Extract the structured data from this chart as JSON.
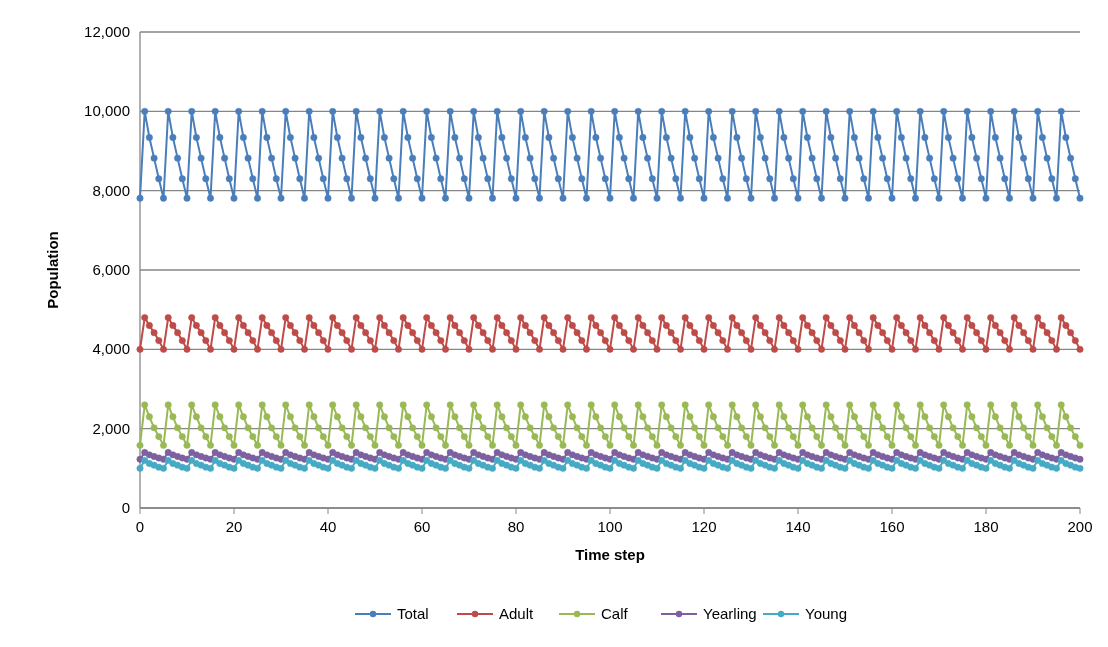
{
  "chart_data": {
    "type": "line",
    "xlabel": "Time step",
    "ylabel": "Population",
    "xlim": [
      0,
      200
    ],
    "xticks": [
      0,
      20,
      40,
      60,
      80,
      100,
      120,
      140,
      160,
      180,
      200
    ],
    "ylim": [
      0,
      12000
    ],
    "yticks": [
      {
        "value": 0,
        "label": "0"
      },
      {
        "value": 2000,
        "label": "2,000"
      },
      {
        "value": 4000,
        "label": "4,000"
      },
      {
        "value": 6000,
        "label": "6,000"
      },
      {
        "value": 8000,
        "label": "8,000"
      },
      {
        "value": 10000,
        "label": "10,000"
      },
      {
        "value": 12000,
        "label": "12,000"
      }
    ],
    "grid": "y",
    "legend": "bottom",
    "marker": "circle",
    "line_style": "solid",
    "x": [
      0,
      1,
      2,
      3,
      4,
      5,
      6,
      7,
      8,
      9,
      10,
      11,
      12,
      13,
      14,
      15,
      16,
      17,
      18,
      19,
      20,
      21,
      22,
      23,
      24,
      25,
      26,
      27,
      28,
      29,
      30,
      31,
      32,
      33,
      34,
      35,
      36,
      37,
      38,
      39,
      40,
      41,
      42,
      43,
      44,
      45,
      46,
      47,
      48,
      49,
      50,
      51,
      52,
      53,
      54,
      55,
      56,
      57,
      58,
      59,
      60,
      61,
      62,
      63,
      64,
      65,
      66,
      67,
      68,
      69,
      70,
      71,
      72,
      73,
      74,
      75,
      76,
      77,
      78,
      79,
      80,
      81,
      82,
      83,
      84,
      85,
      86,
      87,
      88,
      89,
      90,
      91,
      92,
      93,
      94,
      95,
      96,
      97,
      98,
      99,
      100,
      101,
      102,
      103,
      104,
      105,
      106,
      107,
      108,
      109,
      110,
      111,
      112,
      113,
      114,
      115,
      116,
      117,
      118,
      119,
      120,
      121,
      122,
      123,
      124,
      125,
      126,
      127,
      128,
      129,
      130,
      131,
      132,
      133,
      134,
      135,
      136,
      137,
      138,
      139,
      140,
      141,
      142,
      143,
      144,
      145,
      146,
      147,
      148,
      149,
      150,
      151,
      152,
      153,
      154,
      155,
      156,
      157,
      158,
      159,
      160,
      161,
      162,
      163,
      164,
      165,
      166,
      167,
      168,
      169,
      170,
      171,
      172,
      173,
      174,
      175,
      176,
      177,
      178,
      179,
      180,
      181,
      182,
      183,
      184,
      185,
      186,
      187,
      188,
      189,
      190,
      191,
      192,
      193,
      194,
      195,
      196,
      197,
      198,
      199,
      200
    ],
    "series": [
      {
        "name": "Total",
        "color": "#4a7ebb",
        "values": [
          7810,
          10000,
          9340,
          8820,
          8300,
          7810,
          10000,
          9340,
          8820,
          8300,
          7810,
          10000,
          9340,
          8820,
          8300,
          7810,
          10000,
          9340,
          8820,
          8300,
          7810,
          10000,
          9340,
          8820,
          8300,
          7810,
          10000,
          9340,
          8820,
          8300,
          7810,
          10000,
          9340,
          8820,
          8300,
          7810,
          10000,
          9340,
          8820,
          8300,
          7810,
          10000,
          9340,
          8820,
          8300,
          7810,
          10000,
          9340,
          8820,
          8300,
          7810,
          10000,
          9340,
          8820,
          8300,
          7810,
          10000,
          9340,
          8820,
          8300,
          7810,
          10000,
          9340,
          8820,
          8300,
          7810,
          10000,
          9340,
          8820,
          8300,
          7810,
          10000,
          9340,
          8820,
          8300,
          7810,
          10000,
          9340,
          8820,
          8300,
          7810,
          10000,
          9340,
          8820,
          8300,
          7810,
          10000,
          9340,
          8820,
          8300,
          7810,
          10000,
          9340,
          8820,
          8300,
          7810,
          10000,
          9340,
          8820,
          8300,
          7810,
          10000,
          9340,
          8820,
          8300,
          7810,
          10000,
          9340,
          8820,
          8300,
          7810,
          10000,
          9340,
          8820,
          8300,
          7810,
          10000,
          9340,
          8820,
          8300,
          7810,
          10000,
          9340,
          8820,
          8300,
          7810,
          10000,
          9340,
          8820,
          8300,
          7810,
          10000,
          9340,
          8820,
          8300,
          7810,
          10000,
          9340,
          8820,
          8300,
          7810,
          10000,
          9340,
          8820,
          8300,
          7810,
          10000,
          9340,
          8820,
          8300,
          7810,
          10000,
          9340,
          8820,
          8300,
          7810,
          10000,
          9340,
          8820,
          8300,
          7810,
          10000,
          9340,
          8820,
          8300,
          7810,
          10000,
          9340,
          8820,
          8300,
          7810,
          10000,
          9340,
          8820,
          8300,
          7810,
          10000,
          9340,
          8820,
          8300,
          7810,
          10000,
          9340,
          8820,
          8300,
          7810,
          10000,
          9340,
          8820,
          8300,
          7810,
          10000,
          9340,
          8820,
          8300,
          7810,
          10000,
          9340,
          8820,
          8300,
          7810
        ]
      },
      {
        "name": "Adult",
        "color": "#be4b48",
        "values": [
          4000,
          4800,
          4600,
          4420,
          4220,
          4000,
          4800,
          4600,
          4420,
          4220,
          4000,
          4800,
          4600,
          4420,
          4220,
          4000,
          4800,
          4600,
          4420,
          4220,
          4000,
          4800,
          4600,
          4420,
          4220,
          4000,
          4800,
          4600,
          4420,
          4220,
          4000,
          4800,
          4600,
          4420,
          4220,
          4000,
          4800,
          4600,
          4420,
          4220,
          4000,
          4800,
          4600,
          4420,
          4220,
          4000,
          4800,
          4600,
          4420,
          4220,
          4000,
          4800,
          4600,
          4420,
          4220,
          4000,
          4800,
          4600,
          4420,
          4220,
          4000,
          4800,
          4600,
          4420,
          4220,
          4000,
          4800,
          4600,
          4420,
          4220,
          4000,
          4800,
          4600,
          4420,
          4220,
          4000,
          4800,
          4600,
          4420,
          4220,
          4000,
          4800,
          4600,
          4420,
          4220,
          4000,
          4800,
          4600,
          4420,
          4220,
          4000,
          4800,
          4600,
          4420,
          4220,
          4000,
          4800,
          4600,
          4420,
          4220,
          4000,
          4800,
          4600,
          4420,
          4220,
          4000,
          4800,
          4600,
          4420,
          4220,
          4000,
          4800,
          4600,
          4420,
          4220,
          4000,
          4800,
          4600,
          4420,
          4220,
          4000,
          4800,
          4600,
          4420,
          4220,
          4000,
          4800,
          4600,
          4420,
          4220,
          4000,
          4800,
          4600,
          4420,
          4220,
          4000,
          4800,
          4600,
          4420,
          4220,
          4000,
          4800,
          4600,
          4420,
          4220,
          4000,
          4800,
          4600,
          4420,
          4220,
          4000,
          4800,
          4600,
          4420,
          4220,
          4000,
          4800,
          4600,
          4420,
          4220,
          4000,
          4800,
          4600,
          4420,
          4220,
          4000,
          4800,
          4600,
          4420,
          4220,
          4000,
          4800,
          4600,
          4420,
          4220,
          4000,
          4800,
          4600,
          4420,
          4220,
          4000,
          4800,
          4600,
          4420,
          4220,
          4000,
          4800,
          4600,
          4420,
          4220,
          4000,
          4800,
          4600,
          4420,
          4220,
          4000,
          4800,
          4600,
          4420,
          4220,
          4000
        ]
      },
      {
        "name": "Calf",
        "color": "#98b954",
        "values": [
          1580,
          2600,
          2300,
          2020,
          1800,
          1580,
          2600,
          2300,
          2020,
          1800,
          1580,
          2600,
          2300,
          2020,
          1800,
          1580,
          2600,
          2300,
          2020,
          1800,
          1580,
          2600,
          2300,
          2020,
          1800,
          1580,
          2600,
          2300,
          2020,
          1800,
          1580,
          2600,
          2300,
          2020,
          1800,
          1580,
          2600,
          2300,
          2020,
          1800,
          1580,
          2600,
          2300,
          2020,
          1800,
          1580,
          2600,
          2300,
          2020,
          1800,
          1580,
          2600,
          2300,
          2020,
          1800,
          1580,
          2600,
          2300,
          2020,
          1800,
          1580,
          2600,
          2300,
          2020,
          1800,
          1580,
          2600,
          2300,
          2020,
          1800,
          1580,
          2600,
          2300,
          2020,
          1800,
          1580,
          2600,
          2300,
          2020,
          1800,
          1580,
          2600,
          2300,
          2020,
          1800,
          1580,
          2600,
          2300,
          2020,
          1800,
          1580,
          2600,
          2300,
          2020,
          1800,
          1580,
          2600,
          2300,
          2020,
          1800,
          1580,
          2600,
          2300,
          2020,
          1800,
          1580,
          2600,
          2300,
          2020,
          1800,
          1580,
          2600,
          2300,
          2020,
          1800,
          1580,
          2600,
          2300,
          2020,
          1800,
          1580,
          2600,
          2300,
          2020,
          1800,
          1580,
          2600,
          2300,
          2020,
          1800,
          1580,
          2600,
          2300,
          2020,
          1800,
          1580,
          2600,
          2300,
          2020,
          1800,
          1580,
          2600,
          2300,
          2020,
          1800,
          1580,
          2600,
          2300,
          2020,
          1800,
          1580,
          2600,
          2300,
          2020,
          1800,
          1580,
          2600,
          2300,
          2020,
          1800,
          1580,
          2600,
          2300,
          2020,
          1800,
          1580,
          2600,
          2300,
          2020,
          1800,
          1580,
          2600,
          2300,
          2020,
          1800,
          1580,
          2600,
          2300,
          2020,
          1800,
          1580,
          2600,
          2300,
          2020,
          1800,
          1580,
          2600,
          2300,
          2020,
          1800,
          1580,
          2600,
          2300,
          2020,
          1800,
          1580,
          2600,
          2300,
          2020,
          1800,
          1580
        ]
      },
      {
        "name": "Yearling",
        "color": "#7d60a0",
        "values": [
          1230,
          1400,
          1340,
          1300,
          1260,
          1230,
          1400,
          1340,
          1300,
          1260,
          1230,
          1400,
          1340,
          1300,
          1260,
          1230,
          1400,
          1340,
          1300,
          1260,
          1230,
          1400,
          1340,
          1300,
          1260,
          1230,
          1400,
          1340,
          1300,
          1260,
          1230,
          1400,
          1340,
          1300,
          1260,
          1230,
          1400,
          1340,
          1300,
          1260,
          1230,
          1400,
          1340,
          1300,
          1260,
          1230,
          1400,
          1340,
          1300,
          1260,
          1230,
          1400,
          1340,
          1300,
          1260,
          1230,
          1400,
          1340,
          1300,
          1260,
          1230,
          1400,
          1340,
          1300,
          1260,
          1230,
          1400,
          1340,
          1300,
          1260,
          1230,
          1400,
          1340,
          1300,
          1260,
          1230,
          1400,
          1340,
          1300,
          1260,
          1230,
          1400,
          1340,
          1300,
          1260,
          1230,
          1400,
          1340,
          1300,
          1260,
          1230,
          1400,
          1340,
          1300,
          1260,
          1230,
          1400,
          1340,
          1300,
          1260,
          1230,
          1400,
          1340,
          1300,
          1260,
          1230,
          1400,
          1340,
          1300,
          1260,
          1230,
          1400,
          1340,
          1300,
          1260,
          1230,
          1400,
          1340,
          1300,
          1260,
          1230,
          1400,
          1340,
          1300,
          1260,
          1230,
          1400,
          1340,
          1300,
          1260,
          1230,
          1400,
          1340,
          1300,
          1260,
          1230,
          1400,
          1340,
          1300,
          1260,
          1230,
          1400,
          1340,
          1300,
          1260,
          1230,
          1400,
          1340,
          1300,
          1260,
          1230,
          1400,
          1340,
          1300,
          1260,
          1230,
          1400,
          1340,
          1300,
          1260,
          1230,
          1400,
          1340,
          1300,
          1260,
          1230,
          1400,
          1340,
          1300,
          1260,
          1230,
          1400,
          1340,
          1300,
          1260,
          1230,
          1400,
          1340,
          1300,
          1260,
          1230,
          1400,
          1340,
          1300,
          1260,
          1230,
          1400,
          1340,
          1300,
          1260,
          1230,
          1400,
          1340,
          1300,
          1260,
          1230,
          1400,
          1340,
          1300,
          1260,
          1230
        ]
      },
      {
        "name": "Young",
        "color": "#46aac5",
        "values": [
          1000,
          1200,
          1120,
          1080,
          1030,
          1000,
          1200,
          1120,
          1080,
          1030,
          1000,
          1200,
          1120,
          1080,
          1030,
          1000,
          1200,
          1120,
          1080,
          1030,
          1000,
          1200,
          1120,
          1080,
          1030,
          1000,
          1200,
          1120,
          1080,
          1030,
          1000,
          1200,
          1120,
          1080,
          1030,
          1000,
          1200,
          1120,
          1080,
          1030,
          1000,
          1200,
          1120,
          1080,
          1030,
          1000,
          1200,
          1120,
          1080,
          1030,
          1000,
          1200,
          1120,
          1080,
          1030,
          1000,
          1200,
          1120,
          1080,
          1030,
          1000,
          1200,
          1120,
          1080,
          1030,
          1000,
          1200,
          1120,
          1080,
          1030,
          1000,
          1200,
          1120,
          1080,
          1030,
          1000,
          1200,
          1120,
          1080,
          1030,
          1000,
          1200,
          1120,
          1080,
          1030,
          1000,
          1200,
          1120,
          1080,
          1030,
          1000,
          1200,
          1120,
          1080,
          1030,
          1000,
          1200,
          1120,
          1080,
          1030,
          1000,
          1200,
          1120,
          1080,
          1030,
          1000,
          1200,
          1120,
          1080,
          1030,
          1000,
          1200,
          1120,
          1080,
          1030,
          1000,
          1200,
          1120,
          1080,
          1030,
          1000,
          1200,
          1120,
          1080,
          1030,
          1000,
          1200,
          1120,
          1080,
          1030,
          1000,
          1200,
          1120,
          1080,
          1030,
          1000,
          1200,
          1120,
          1080,
          1030,
          1000,
          1200,
          1120,
          1080,
          1030,
          1000,
          1200,
          1120,
          1080,
          1030,
          1000,
          1200,
          1120,
          1080,
          1030,
          1000,
          1200,
          1120,
          1080,
          1030,
          1000,
          1200,
          1120,
          1080,
          1030,
          1000,
          1200,
          1120,
          1080,
          1030,
          1000,
          1200,
          1120,
          1080,
          1030,
          1000,
          1200,
          1120,
          1080,
          1030,
          1000,
          1200,
          1120,
          1080,
          1030,
          1000,
          1200,
          1120,
          1080,
          1030,
          1000,
          1200,
          1120,
          1080,
          1030,
          1000,
          1200,
          1120,
          1080,
          1030,
          1000
        ]
      }
    ]
  }
}
